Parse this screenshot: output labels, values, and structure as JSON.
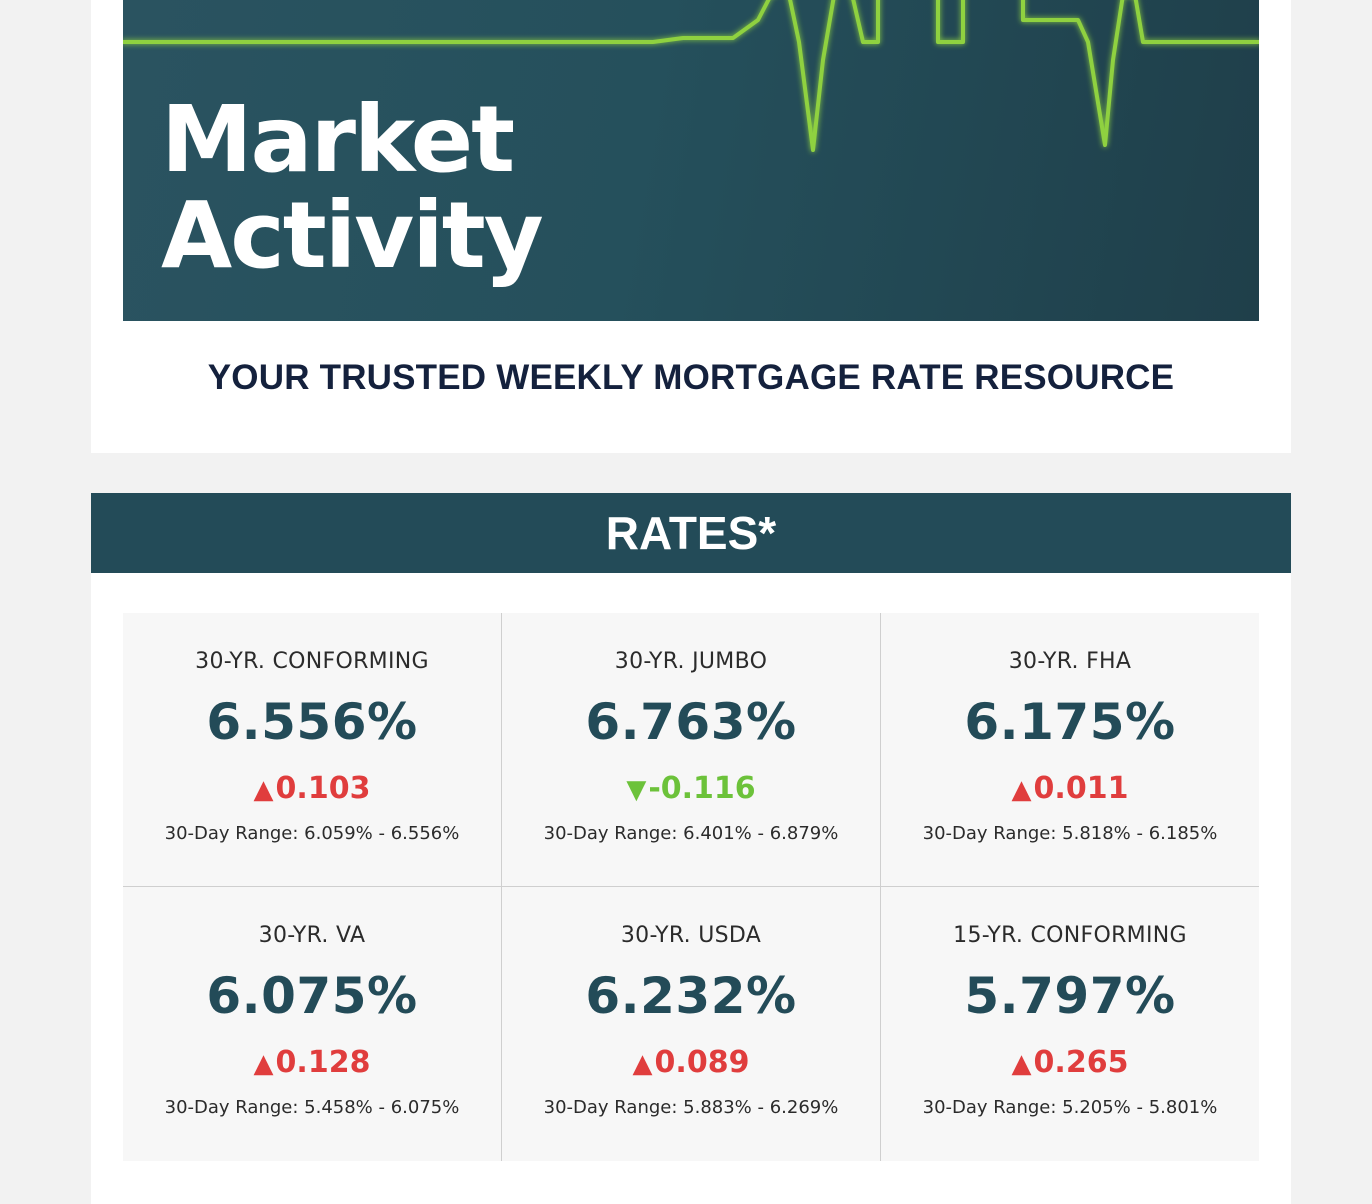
{
  "hero": {
    "title_line1": "Market",
    "title_line2": "Activity",
    "accent_color": "#8fd13f",
    "background_color": "#25505c"
  },
  "tagline": "YOUR TRUSTED WEEKLY MORTGAGE RATE RESOURCE",
  "rates": {
    "header": "RATES*",
    "header_color": "#234b58",
    "up_color": "#e03d3d",
    "down_color": "#6cc23a",
    "items": [
      {
        "label": "30-YR. CONFORMING",
        "value": "6.556%",
        "direction": "up",
        "arrow": "▲",
        "change": "0.103",
        "range": "30-Day Range: 6.059% - 6.556%"
      },
      {
        "label": "30-YR. JUMBO",
        "value": "6.763%",
        "direction": "down",
        "arrow": "▼",
        "change": "-0.116",
        "range": "30-Day Range: 6.401% - 6.879%"
      },
      {
        "label": "30-YR. FHA",
        "value": "6.175%",
        "direction": "up",
        "arrow": "▲",
        "change": "0.011",
        "range": "30-Day Range: 5.818% - 6.185%"
      },
      {
        "label": "30-YR. VA",
        "value": "6.075%",
        "direction": "up",
        "arrow": "▲",
        "change": "0.128",
        "range": "30-Day Range: 5.458% - 6.075%"
      },
      {
        "label": "30-YR. USDA",
        "value": "6.232%",
        "direction": "up",
        "arrow": "▲",
        "change": "0.089",
        "range": "30-Day Range: 5.883% - 6.269%"
      },
      {
        "label": "15-YR. CONFORMING",
        "value": "5.797%",
        "direction": "up",
        "arrow": "▲",
        "change": "0.265",
        "range": "30-Day Range: 5.205% - 5.801%"
      }
    ]
  }
}
